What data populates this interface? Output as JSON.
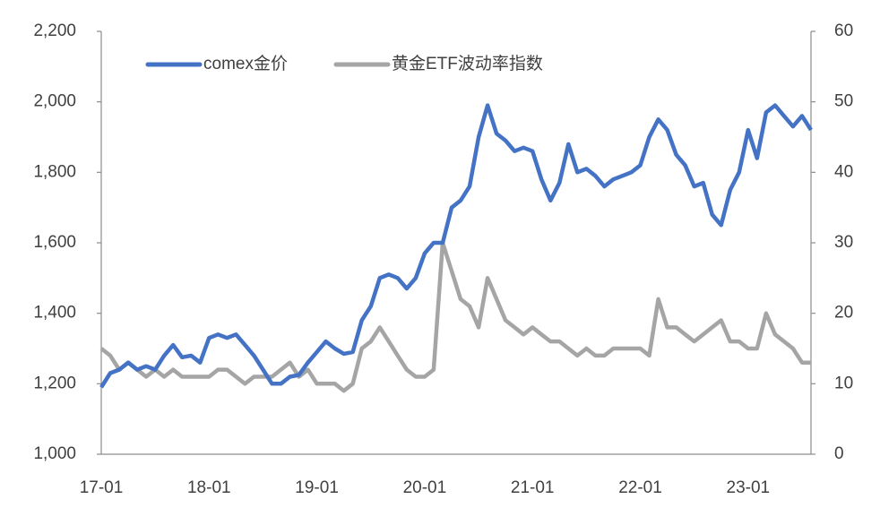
{
  "chart_data": {
    "type": "line",
    "categories": [
      "17-01",
      null,
      null,
      null,
      null,
      null,
      null,
      null,
      null,
      null,
      null,
      null,
      "18-01",
      null,
      null,
      null,
      null,
      null,
      null,
      null,
      null,
      null,
      null,
      null,
      "19-01",
      null,
      null,
      null,
      null,
      null,
      null,
      null,
      null,
      null,
      null,
      null,
      "20-01",
      null,
      null,
      null,
      null,
      null,
      null,
      null,
      null,
      null,
      null,
      null,
      "21-01",
      null,
      null,
      null,
      null,
      null,
      null,
      null,
      null,
      null,
      null,
      null,
      "22-01",
      null,
      null,
      null,
      null,
      null,
      null,
      null,
      null,
      null,
      null,
      null,
      "23-01",
      null,
      null,
      null,
      null,
      null,
      null,
      null
    ],
    "series": [
      {
        "name": "comex金价",
        "color": "#4472c4",
        "axis": "y",
        "values": [
          1190,
          1230,
          1240,
          1260,
          1240,
          1250,
          1240,
          1280,
          1310,
          1275,
          1280,
          1260,
          1330,
          1340,
          1330,
          1340,
          1310,
          1280,
          1240,
          1200,
          1200,
          1220,
          1225,
          1260,
          1290,
          1320,
          1300,
          1285,
          1290,
          1380,
          1420,
          1500,
          1510,
          1500,
          1470,
          1500,
          1570,
          1600,
          1600,
          1700,
          1720,
          1760,
          1900,
          1990,
          1910,
          1890,
          1860,
          1870,
          1860,
          1780,
          1720,
          1770,
          1880,
          1800,
          1810,
          1790,
          1760,
          1780,
          1790,
          1800,
          1820,
          1900,
          1950,
          1920,
          1850,
          1820,
          1760,
          1770,
          1680,
          1650,
          1750,
          1800,
          1920,
          1840,
          1970,
          1990,
          1960,
          1930,
          1960,
          1920
        ]
      },
      {
        "name": "黄金ETF波动率指数",
        "color": "#a5a5a5",
        "axis": "y2",
        "values": [
          15,
          14,
          12,
          13,
          12,
          11,
          12,
          11,
          12,
          11,
          11,
          11,
          11,
          12,
          12,
          11,
          10,
          11,
          11,
          11,
          12,
          13,
          11,
          12,
          10,
          10,
          10,
          9,
          10,
          15,
          16,
          18,
          16,
          14,
          12,
          11,
          11,
          12,
          30,
          26,
          22,
          21,
          18,
          25,
          22,
          19,
          18,
          17,
          18,
          17,
          16,
          16,
          15,
          14,
          15,
          14,
          14,
          15,
          15,
          15,
          15,
          14,
          22,
          18,
          18,
          17,
          16,
          17,
          18,
          19,
          16,
          16,
          15,
          15,
          20,
          17,
          16,
          15,
          13,
          13
        ]
      }
    ],
    "ylim": [
      1000,
      2200
    ],
    "yticks": [
      {
        "value": 1000,
        "label": "1,000"
      },
      {
        "value": 1200,
        "label": "1,200"
      },
      {
        "value": 1400,
        "label": "1,400"
      },
      {
        "value": 1600,
        "label": "1,600"
      },
      {
        "value": 1800,
        "label": "1,800"
      },
      {
        "value": 2000,
        "label": "2,000"
      },
      {
        "value": 2200,
        "label": "2,200"
      }
    ],
    "y2lim": [
      0,
      60
    ],
    "y2ticks": [
      0,
      10,
      20,
      30,
      40,
      50,
      60
    ],
    "grid": false,
    "legend": "top"
  }
}
